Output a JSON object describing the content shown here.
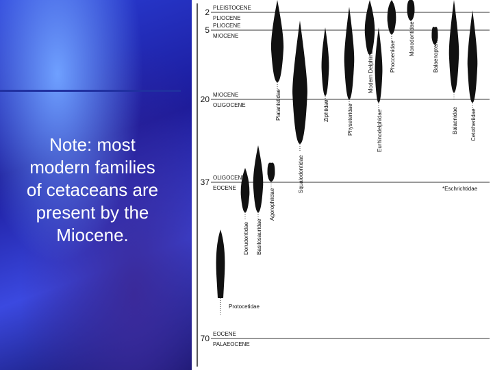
{
  "note": {
    "lines": [
      "Note: most",
      "modern families",
      "of cetaceans are",
      "present by the",
      "Miocene."
    ]
  },
  "boundaries": [
    {
      "age": "2",
      "above": "PLEISTOCENE",
      "below": "PLIOCENE"
    },
    {
      "age": "5",
      "above": "PLIOCENE",
      "below": "MIOCENE"
    },
    {
      "age": "20",
      "above": "MIOCENE",
      "below": "OLIGOCENE"
    },
    {
      "age": "37",
      "above": "OLIGOCENE",
      "below": "EOCENE"
    },
    {
      "age": "70",
      "above": "EOCENE",
      "below": "PALAEOCENE"
    }
  ],
  "families": [
    "Platanistidae",
    "Ziphiidae",
    "Physeteridae",
    "Modern Delphinidae",
    "Phocoenidae",
    "Monodontidae",
    "Balaenopteridae",
    "Squalodontidae",
    "Eurhinodelphidae",
    "Balaenidae",
    "Cetotheriidae",
    "Dorudontidae",
    "Basilosauridae",
    "Agorophiidae",
    "Protocetidae",
    "*Eschrichtidae"
  ]
}
